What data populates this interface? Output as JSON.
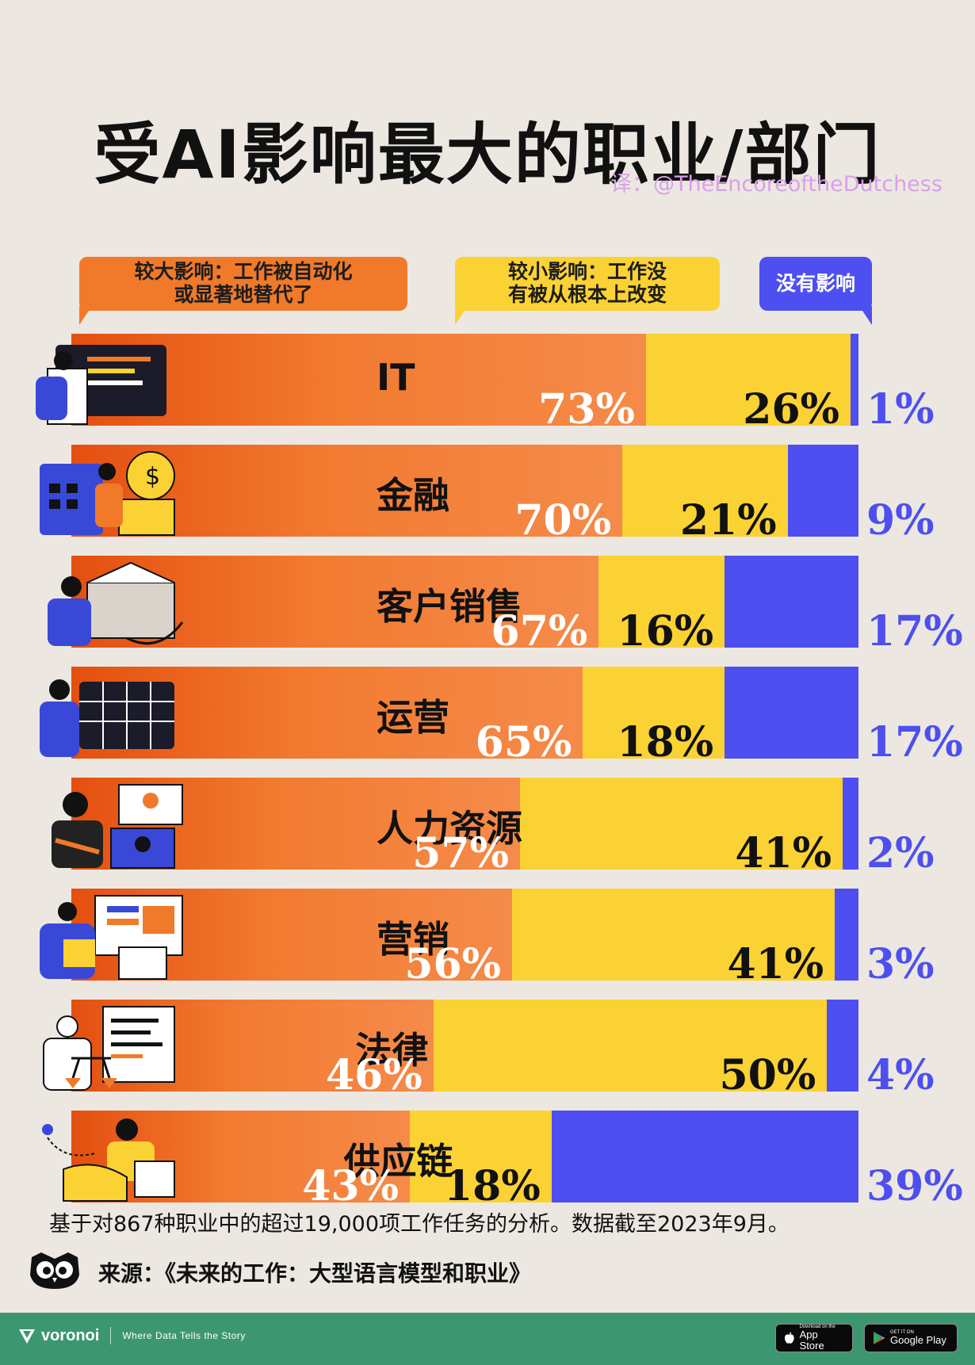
{
  "title": "受AI影响最大的职业/部门",
  "credit": "译：@TheEncoreoftheDutchess",
  "legend": {
    "major": "较大影响：工作被自动化\n或显著地替代了",
    "minor": "较小影响：工作没\n有被从根本上改变",
    "none": "没有影响"
  },
  "colors": {
    "major": "#f07a2a",
    "minor": "#fbd233",
    "none": "#4d4ff0",
    "background": "#ece8e1",
    "footer": "#3c9770"
  },
  "chart_data": {
    "type": "bar",
    "stacked": true,
    "orientation": "horizontal",
    "categories": [
      "IT",
      "金融",
      "客户销售",
      "运营",
      "人力资源",
      "营销",
      "法律",
      "供应链"
    ],
    "series": [
      {
        "name": "较大影响：工作被自动化或显著地替代了",
        "values": [
          73,
          70,
          67,
          65,
          57,
          56,
          46,
          43
        ]
      },
      {
        "name": "较小影响：工作没有被从根本上改变",
        "values": [
          26,
          21,
          16,
          18,
          41,
          41,
          50,
          18
        ]
      },
      {
        "name": "没有影响",
        "values": [
          1,
          9,
          17,
          17,
          2,
          3,
          4,
          39
        ]
      }
    ],
    "value_suffix": "%",
    "xlim": [
      0,
      100
    ]
  },
  "icons": [
    "developer-icon",
    "finance-icon",
    "sales-icon",
    "operations-icon",
    "hr-icon",
    "marketing-icon",
    "legal-icon",
    "supply-chain-icon"
  ],
  "note": "基于对867种职业中的超过19,000项工作任务的分析。数据截至2023年9月。",
  "source": "来源：《未来的工作：大型语言模型和职业》",
  "footer": {
    "brand": "voronoi",
    "tagline": "Where Data Tells the Story",
    "app_store_small": "Download on the",
    "app_store_big": "App Store",
    "google_small": "GET IT ON",
    "google_big": "Google Play"
  }
}
